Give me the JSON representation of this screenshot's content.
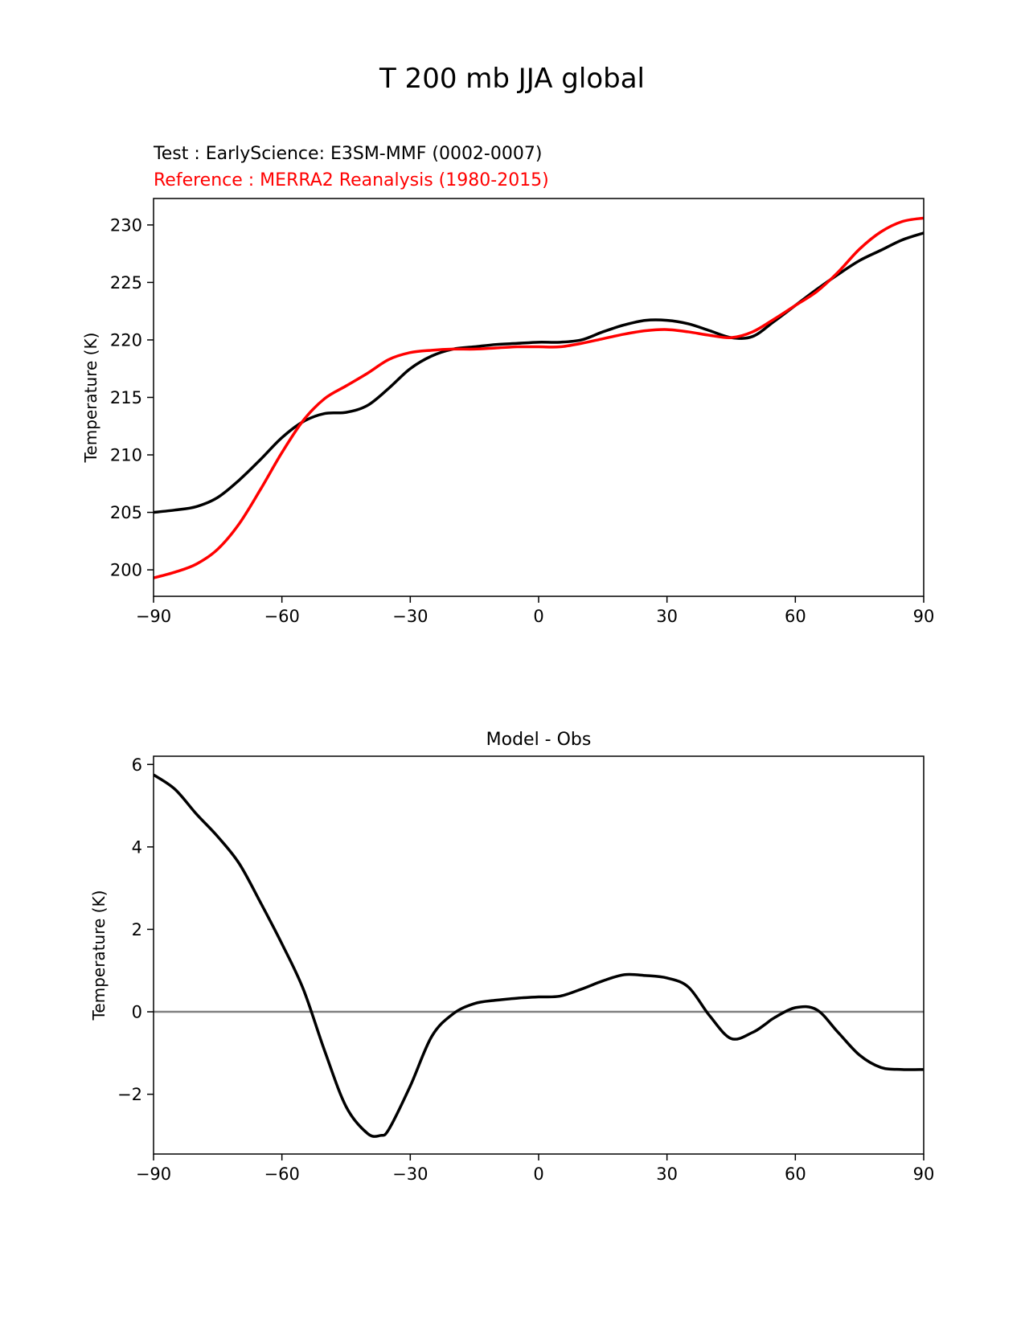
{
  "figure": {
    "suptitle": "T 200 mb JJA global"
  },
  "chart_data": [
    {
      "type": "line",
      "test_label": "Test : EarlyScience: E3SM-MMF (0002-0007)",
      "ref_label": "Reference : MERRA2 Reanalysis (1980-2015)",
      "xlabel": "",
      "ylabel": "Temperature (K)",
      "xlim": [
        -90,
        90
      ],
      "ylim": [
        197.7,
        232.3
      ],
      "xticks": [
        -90,
        -60,
        -30,
        0,
        30,
        60,
        90
      ],
      "xtick_labels": [
        "−90",
        "−60",
        "−30",
        "0",
        "30",
        "60",
        "90"
      ],
      "yticks": [
        200,
        205,
        210,
        215,
        220,
        225,
        230
      ],
      "ytick_labels": [
        "200",
        "205",
        "210",
        "215",
        "220",
        "225",
        "230"
      ],
      "series": [
        {
          "name": "Test",
          "color": "#000000",
          "x": [
            -90,
            -85,
            -80,
            -75,
            -70,
            -65,
            -60,
            -55,
            -50,
            -45,
            -40,
            -35,
            -30,
            -25,
            -20,
            -15,
            -10,
            -5,
            0,
            5,
            10,
            15,
            20,
            25,
            30,
            35,
            40,
            45,
            50,
            55,
            60,
            65,
            70,
            75,
            80,
            85,
            90
          ],
          "values": [
            205.0,
            205.2,
            205.5,
            206.3,
            207.8,
            209.6,
            211.5,
            212.9,
            213.6,
            213.7,
            214.3,
            215.8,
            217.5,
            218.6,
            219.2,
            219.4,
            219.6,
            219.7,
            219.8,
            219.8,
            220.0,
            220.7,
            221.3,
            221.7,
            221.7,
            221.4,
            220.8,
            220.2,
            220.3,
            221.6,
            223.0,
            224.4,
            225.7,
            226.9,
            227.8,
            228.7,
            229.3
          ]
        },
        {
          "name": "Reference",
          "color": "#ff0000",
          "x": [
            -90,
            -85,
            -80,
            -75,
            -70,
            -65,
            -60,
            -55,
            -50,
            -45,
            -40,
            -35,
            -30,
            -25,
            -20,
            -15,
            -10,
            -5,
            0,
            5,
            10,
            15,
            20,
            25,
            30,
            35,
            40,
            45,
            50,
            55,
            60,
            65,
            70,
            75,
            80,
            85,
            90
          ],
          "values": [
            199.3,
            199.8,
            200.5,
            201.8,
            204.0,
            207.0,
            210.2,
            213.0,
            214.9,
            216.0,
            217.1,
            218.3,
            218.9,
            219.1,
            219.2,
            219.2,
            219.3,
            219.4,
            219.4,
            219.4,
            219.7,
            220.1,
            220.5,
            220.8,
            220.9,
            220.7,
            220.4,
            220.2,
            220.7,
            221.8,
            223.0,
            224.2,
            225.9,
            227.9,
            229.4,
            230.3,
            230.6
          ]
        }
      ]
    },
    {
      "type": "line",
      "title": "Model - Obs",
      "xlabel": "",
      "ylabel": "Temperature (K)",
      "xlim": [
        -90,
        90
      ],
      "ylim": [
        -3.45,
        6.2
      ],
      "xticks": [
        -90,
        -60,
        -30,
        0,
        30,
        60,
        90
      ],
      "xtick_labels": [
        "−90",
        "−60",
        "−30",
        "0",
        "30",
        "60",
        "90"
      ],
      "yticks": [
        -2,
        0,
        2,
        4,
        6
      ],
      "ytick_labels": [
        "−2",
        "0",
        "2",
        "4",
        "6"
      ],
      "zero_line_color": "#808080",
      "series": [
        {
          "name": "Model - Obs",
          "color": "#000000",
          "x": [
            -90,
            -85,
            -80,
            -75,
            -70,
            -65,
            -60,
            -55,
            -50,
            -45,
            -40,
            -37,
            -35,
            -30,
            -25,
            -20,
            -15,
            -10,
            -5,
            0,
            5,
            10,
            15,
            20,
            25,
            30,
            35,
            40,
            45,
            50,
            53,
            55,
            60,
            65,
            70,
            75,
            80,
            85,
            90
          ],
          "values": [
            5.75,
            5.4,
            4.8,
            4.25,
            3.6,
            2.65,
            1.65,
            0.55,
            -0.95,
            -2.3,
            -2.95,
            -3.0,
            -2.85,
            -1.8,
            -0.6,
            -0.05,
            0.2,
            0.28,
            0.33,
            0.36,
            0.38,
            0.55,
            0.75,
            0.9,
            0.88,
            0.82,
            0.6,
            -0.1,
            -0.65,
            -0.5,
            -0.3,
            -0.15,
            0.1,
            0.05,
            -0.5,
            -1.05,
            -1.35,
            -1.4,
            -1.4
          ]
        }
      ]
    }
  ]
}
